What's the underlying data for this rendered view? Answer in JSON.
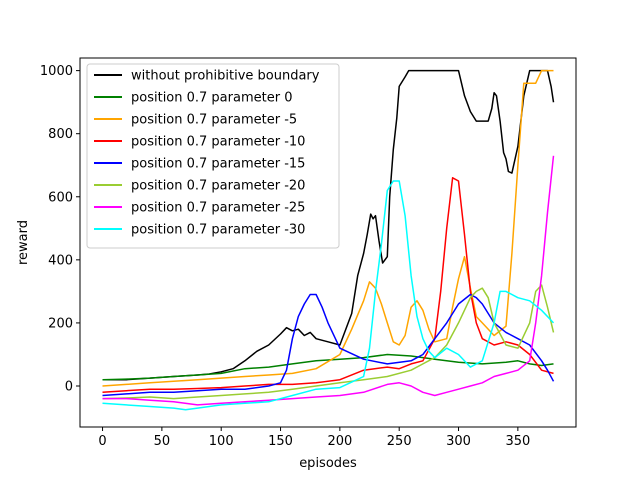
{
  "chart_data": {
    "type": "line",
    "xlabel": "episodes",
    "ylabel": "reward",
    "xlim": [
      -19,
      399
    ],
    "ylim": [
      -130,
      1040
    ],
    "xticks": [
      0,
      50,
      100,
      150,
      200,
      250,
      300,
      350
    ],
    "yticks": [
      0,
      200,
      400,
      600,
      800,
      1000
    ],
    "grid": false,
    "legend_position": "top-left",
    "series": [
      {
        "name": "without prohibitive boundary",
        "color": "#000000",
        "x": [
          0,
          20,
          40,
          60,
          80,
          90,
          100,
          110,
          120,
          130,
          140,
          150,
          155,
          160,
          165,
          170,
          175,
          180,
          190,
          200,
          205,
          210,
          215,
          220,
          223,
          226,
          228,
          230,
          233,
          236,
          240,
          242,
          245,
          248,
          250,
          255,
          258,
          260,
          270,
          280,
          290,
          300,
          305,
          310,
          315,
          320,
          325,
          328,
          330,
          332,
          335,
          338,
          340,
          342,
          345,
          350,
          355,
          360,
          365,
          370,
          375,
          378,
          380
        ],
        "y": [
          20,
          20,
          25,
          30,
          35,
          38,
          45,
          55,
          80,
          110,
          130,
          165,
          185,
          175,
          180,
          160,
          170,
          150,
          140,
          130,
          180,
          230,
          350,
          420,
          480,
          545,
          530,
          540,
          460,
          390,
          410,
          600,
          750,
          850,
          950,
          980,
          1000,
          1000,
          1000,
          1000,
          1000,
          1000,
          920,
          870,
          840,
          840,
          840,
          880,
          930,
          920,
          840,
          740,
          720,
          680,
          675,
          760,
          920,
          1000,
          1000,
          1000,
          1000,
          950,
          900
        ]
      },
      {
        "name": "position 0.7 parameter 0",
        "color": "#008000",
        "x": [
          0,
          20,
          40,
          60,
          80,
          100,
          120,
          140,
          160,
          180,
          200,
          220,
          240,
          260,
          280,
          300,
          320,
          340,
          350,
          360,
          370,
          380
        ],
        "y": [
          20,
          22,
          25,
          30,
          35,
          40,
          55,
          60,
          70,
          80,
          85,
          90,
          100,
          95,
          85,
          75,
          70,
          75,
          80,
          70,
          65,
          70
        ]
      },
      {
        "name": "position 0.7 parameter -5",
        "color": "#ffa500",
        "x": [
          0,
          20,
          40,
          60,
          80,
          100,
          120,
          140,
          160,
          180,
          200,
          210,
          220,
          225,
          230,
          235,
          240,
          245,
          250,
          255,
          260,
          265,
          270,
          275,
          280,
          290,
          295,
          300,
          305,
          310,
          315,
          320,
          330,
          340,
          345,
          350,
          355,
          360,
          365,
          370,
          375,
          380
        ],
        "y": [
          0,
          5,
          10,
          15,
          20,
          25,
          30,
          35,
          40,
          55,
          100,
          180,
          270,
          330,
          310,
          260,
          200,
          140,
          130,
          160,
          250,
          270,
          240,
          180,
          140,
          150,
          250,
          340,
          410,
          310,
          220,
          200,
          160,
          190,
          420,
          700,
          960,
          960,
          960,
          1000,
          1000,
          1000
        ]
      },
      {
        "name": "position 0.7 parameter -10",
        "color": "#ff0000",
        "x": [
          0,
          20,
          40,
          60,
          80,
          100,
          120,
          140,
          160,
          180,
          200,
          220,
          240,
          250,
          260,
          270,
          280,
          285,
          290,
          295,
          300,
          305,
          310,
          315,
          320,
          330,
          340,
          350,
          360,
          370,
          380
        ],
        "y": [
          -20,
          -15,
          -10,
          -10,
          -8,
          -5,
          0,
          5,
          5,
          10,
          20,
          50,
          60,
          55,
          70,
          80,
          150,
          300,
          500,
          660,
          650,
          480,
          300,
          200,
          150,
          130,
          140,
          130,
          100,
          50,
          40
        ]
      },
      {
        "name": "position 0.7 parameter -15",
        "color": "#0000ff",
        "x": [
          0,
          20,
          40,
          60,
          80,
          100,
          120,
          140,
          150,
          155,
          160,
          165,
          170,
          175,
          180,
          185,
          190,
          200,
          220,
          240,
          260,
          270,
          280,
          290,
          300,
          310,
          315,
          320,
          330,
          340,
          350,
          360,
          370,
          375,
          380
        ],
        "y": [
          -30,
          -25,
          -20,
          -20,
          -15,
          -10,
          -10,
          0,
          10,
          50,
          150,
          220,
          260,
          290,
          290,
          250,
          200,
          120,
          85,
          70,
          80,
          100,
          150,
          200,
          260,
          290,
          280,
          260,
          200,
          170,
          150,
          130,
          80,
          50,
          15
        ]
      },
      {
        "name": "position 0.7 parameter -20",
        "color": "#9acd32",
        "x": [
          0,
          20,
          40,
          60,
          80,
          100,
          120,
          140,
          160,
          180,
          200,
          220,
          240,
          260,
          270,
          280,
          290,
          300,
          310,
          315,
          320,
          325,
          330,
          340,
          350,
          360,
          365,
          370,
          375,
          380
        ],
        "y": [
          -40,
          -38,
          -35,
          -40,
          -35,
          -30,
          -25,
          -20,
          -10,
          0,
          10,
          20,
          30,
          50,
          70,
          90,
          130,
          200,
          280,
          300,
          310,
          280,
          200,
          130,
          120,
          200,
          300,
          320,
          250,
          170
        ]
      },
      {
        "name": "position 0.7 parameter -25",
        "color": "#ff00ff",
        "x": [
          0,
          20,
          40,
          60,
          80,
          100,
          120,
          140,
          160,
          180,
          200,
          220,
          240,
          250,
          260,
          270,
          280,
          290,
          300,
          310,
          320,
          330,
          340,
          350,
          360,
          365,
          370,
          375,
          380
        ],
        "y": [
          -40,
          -40,
          -45,
          -50,
          -60,
          -55,
          -50,
          -45,
          -40,
          -35,
          -30,
          -20,
          5,
          10,
          0,
          -20,
          -30,
          -20,
          -10,
          0,
          10,
          30,
          40,
          50,
          80,
          200,
          350,
          550,
          730
        ]
      },
      {
        "name": "position 0.7 parameter -30",
        "color": "#00ffff",
        "x": [
          0,
          20,
          40,
          60,
          70,
          80,
          100,
          120,
          140,
          160,
          180,
          200,
          220,
          225,
          230,
          235,
          240,
          245,
          250,
          255,
          260,
          265,
          270,
          275,
          280,
          290,
          300,
          310,
          320,
          330,
          335,
          340,
          350,
          360,
          370,
          380
        ],
        "y": [
          -55,
          -60,
          -65,
          -70,
          -75,
          -70,
          -60,
          -55,
          -50,
          -30,
          -10,
          -5,
          30,
          120,
          300,
          450,
          620,
          650,
          650,
          540,
          350,
          220,
          150,
          110,
          90,
          120,
          100,
          60,
          80,
          200,
          300,
          300,
          280,
          270,
          240,
          200
        ]
      }
    ]
  }
}
